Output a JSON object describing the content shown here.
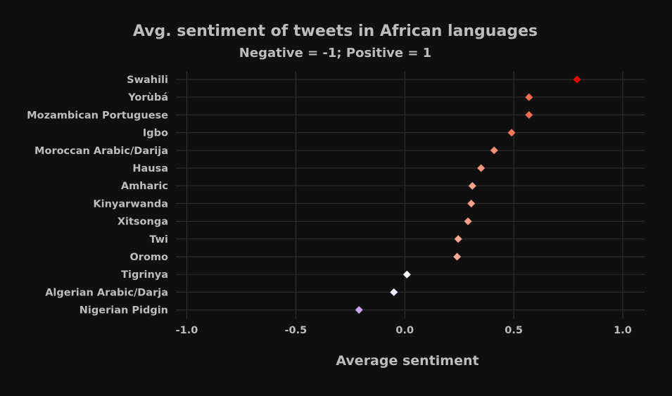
{
  "chart_data": {
    "type": "scatter",
    "title": "Avg. sentiment of tweets in African languages",
    "subtitle": "Negative = -1; Positive = 1",
    "xlabel": "Average sentiment",
    "ylabel": "",
    "xlim": [
      -1.05,
      1.1
    ],
    "xticks": [
      -1.0,
      -0.5,
      0.0,
      0.5,
      1.0
    ],
    "xtick_labels": [
      "-1.0",
      "-0.5",
      "0.0",
      "0.5",
      "1.0"
    ],
    "grid": true,
    "legend": "none",
    "categories": [
      "Swahili",
      "Yorùbá",
      "Mozambican Portuguese",
      "Igbo",
      "Moroccan Arabic/Darija",
      "Hausa",
      "Amharic",
      "Kinyarwanda",
      "Xitsonga",
      "Twi",
      "Oromo",
      "Tigrinya",
      "Algerian Arabic/Darja",
      "Nigerian Pidgin"
    ],
    "values": [
      0.79,
      0.57,
      0.57,
      0.49,
      0.41,
      0.35,
      0.31,
      0.305,
      0.29,
      0.245,
      0.24,
      0.01,
      -0.05,
      -0.21
    ],
    "colors": [
      "#ee0000",
      "#f26b50",
      "#f26b50",
      "#f4785e",
      "#f58d76",
      "#f6967f",
      "#f6a08a",
      "#f6a08a",
      "#f6a08a",
      "#f7a993",
      "#f7a993",
      "#ffffff",
      "#f3f0ff",
      "#c9a8f6"
    ]
  }
}
